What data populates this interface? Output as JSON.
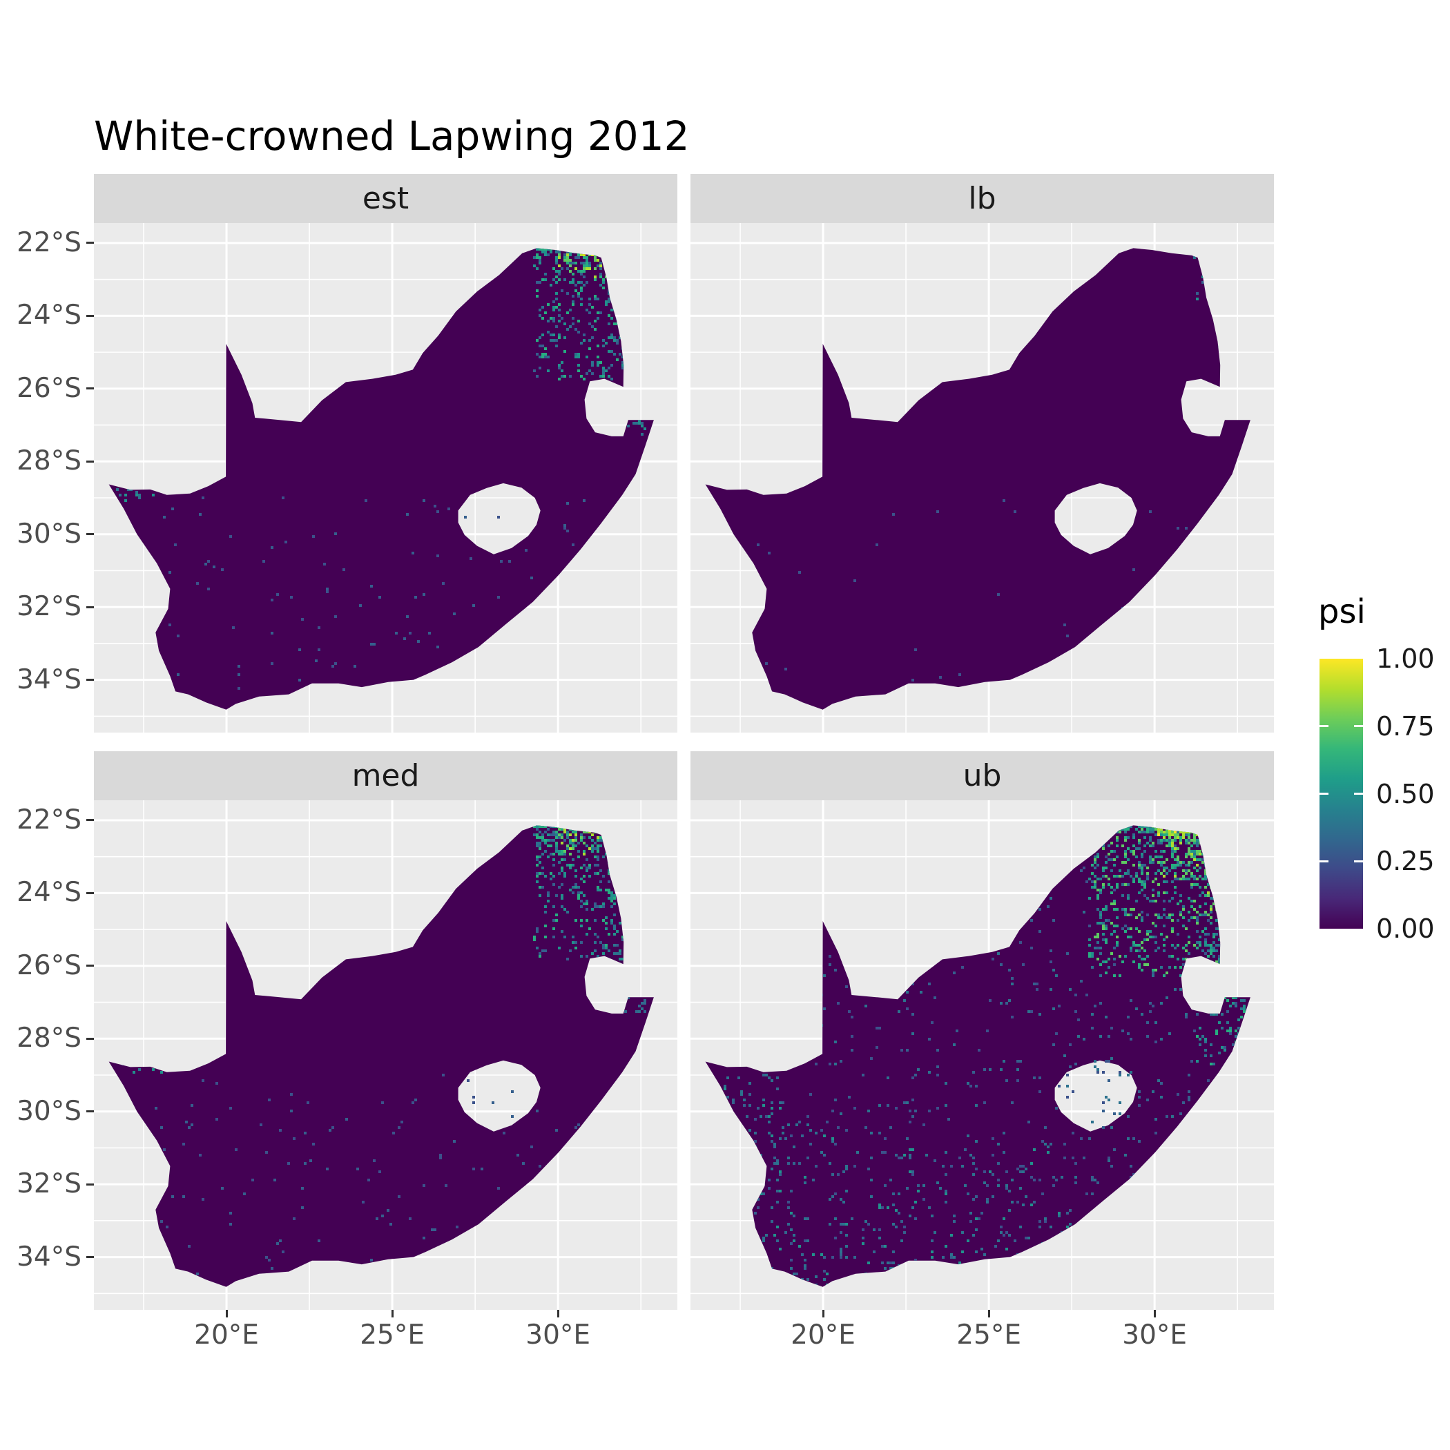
{
  "title": "White-crowned Lapwing 2012",
  "legend": {
    "title": "psi",
    "breaks": [
      "1.00",
      "0.75",
      "0.50",
      "0.25",
      "0.00"
    ],
    "break_values": [
      1.0,
      0.75,
      0.5,
      0.25,
      0.0
    ],
    "interior_tick_values": [
      0.75,
      0.5,
      0.25
    ]
  },
  "axes": {
    "x": {
      "ticks": [
        "20°E",
        "25°E",
        "30°E"
      ],
      "values": [
        20,
        25,
        30
      ],
      "minor": [
        17.5,
        22.5,
        27.5,
        32.5
      ],
      "domain": [
        16.0,
        33.6
      ]
    },
    "y": {
      "ticks": [
        "22°S",
        "24°S",
        "26°S",
        "28°S",
        "30°S",
        "32°S",
        "34°S"
      ],
      "values": [
        22,
        24,
        26,
        28,
        30,
        32,
        34
      ],
      "minor": [
        23,
        25,
        27,
        29,
        31,
        33,
        35
      ],
      "domain": [
        21.45,
        35.45
      ]
    }
  },
  "colors": {
    "panel_bg": "#EBEBEB",
    "strip_bg": "#D9D9D9",
    "strip_text": "#1A1A1A",
    "grid": "#FFFFFF",
    "map_base": "#440154",
    "axis_text": "#4D4D4D",
    "tick": "#333333",
    "title_text": "#000000",
    "viridis": [
      "#440154",
      "#482878",
      "#3E4A89",
      "#31688E",
      "#26828E",
      "#1F9E89",
      "#35B779",
      "#6DCD59",
      "#B4DE2C",
      "#FDE725"
    ]
  },
  "chart_data": {
    "type": "heatmap",
    "subtype": "faceted raster occupancy maps",
    "geography": "South Africa",
    "title": "White-crowned Lapwing 2012",
    "fill_variable": "psi",
    "psi_range": [
      0.0,
      1.0
    ],
    "facet_labels": [
      "est",
      "lb",
      "med",
      "ub"
    ],
    "description": "Four faceted raster maps of South Africa showing modelled occupancy probability (psi) for the White-crowned Lapwing in 2012: point estimate (est), lower bound (lb), median (med) and upper bound (ub). Nearly all grid cells are psi ~ 0 (dark purple). Higher psi values (teal, green, yellow up to ~1.0) are concentrated in the far north-east (Limpopo valley / Kruger lowveld, ~29.5-32.5E, 22-25S). lb is almost uniformly 0 with a few teal cells in the extreme north-east; est and med show a clear north-east hotspot with a yellow streak on the northern border; ub shows the strongest north-east hotspot plus widespread scattered low-to-moderate cells across the rest of the country.",
    "map_outline": [
      [
        16.45,
        28.63
      ],
      [
        17.1,
        28.78
      ],
      [
        17.7,
        28.77
      ],
      [
        18.2,
        28.92
      ],
      [
        18.9,
        28.88
      ],
      [
        19.45,
        28.68
      ],
      [
        19.98,
        28.42
      ],
      [
        19.99,
        24.77
      ],
      [
        20.45,
        25.62
      ],
      [
        20.78,
        26.4
      ],
      [
        20.86,
        26.8
      ],
      [
        21.6,
        26.86
      ],
      [
        22.25,
        26.92
      ],
      [
        22.88,
        26.32
      ],
      [
        23.6,
        25.82
      ],
      [
        24.4,
        25.73
      ],
      [
        25.1,
        25.62
      ],
      [
        25.62,
        25.48
      ],
      [
        25.92,
        25.02
      ],
      [
        26.38,
        24.55
      ],
      [
        26.92,
        23.88
      ],
      [
        27.56,
        23.33
      ],
      [
        28.22,
        22.88
      ],
      [
        28.92,
        22.28
      ],
      [
        29.36,
        22.14
      ],
      [
        29.92,
        22.19
      ],
      [
        30.52,
        22.28
      ],
      [
        31.12,
        22.34
      ],
      [
        31.3,
        22.4
      ],
      [
        31.46,
        22.95
      ],
      [
        31.56,
        23.5
      ],
      [
        31.76,
        24.1
      ],
      [
        31.9,
        24.7
      ],
      [
        31.98,
        25.35
      ],
      [
        31.97,
        25.95
      ],
      [
        31.4,
        25.73
      ],
      [
        30.96,
        25.8
      ],
      [
        30.8,
        26.3
      ],
      [
        30.86,
        26.82
      ],
      [
        31.12,
        27.2
      ],
      [
        31.62,
        27.31
      ],
      [
        31.97,
        27.31
      ],
      [
        32.12,
        26.86
      ],
      [
        32.89,
        26.86
      ],
      [
        32.64,
        27.55
      ],
      [
        32.34,
        28.35
      ],
      [
        31.94,
        28.92
      ],
      [
        31.3,
        29.7
      ],
      [
        30.68,
        30.42
      ],
      [
        30.02,
        31.12
      ],
      [
        29.24,
        31.86
      ],
      [
        28.44,
        32.46
      ],
      [
        27.6,
        33.1
      ],
      [
        26.8,
        33.52
      ],
      [
        26.0,
        33.86
      ],
      [
        25.64,
        34.0
      ],
      [
        24.88,
        34.06
      ],
      [
        24.08,
        34.2
      ],
      [
        23.38,
        34.1
      ],
      [
        22.58,
        34.1
      ],
      [
        21.88,
        34.4
      ],
      [
        20.98,
        34.46
      ],
      [
        20.28,
        34.66
      ],
      [
        19.99,
        34.82
      ],
      [
        19.38,
        34.62
      ],
      [
        18.84,
        34.4
      ],
      [
        18.46,
        34.32
      ],
      [
        18.3,
        33.9
      ],
      [
        17.96,
        33.2
      ],
      [
        17.86,
        32.7
      ],
      [
        18.24,
        32.05
      ],
      [
        18.3,
        31.5
      ],
      [
        17.9,
        30.8
      ],
      [
        17.3,
        30.0
      ],
      [
        16.9,
        29.3
      ]
    ],
    "lesotho_hole": [
      [
        26.99,
        29.35
      ],
      [
        27.35,
        28.92
      ],
      [
        27.85,
        28.73
      ],
      [
        28.35,
        28.6
      ],
      [
        28.9,
        28.72
      ],
      [
        29.3,
        29.0
      ],
      [
        29.47,
        29.35
      ],
      [
        29.35,
        29.74
      ],
      [
        29.1,
        30.05
      ],
      [
        28.6,
        30.38
      ],
      [
        28.06,
        30.55
      ],
      [
        27.56,
        30.32
      ],
      [
        27.18,
        30.02
      ],
      [
        26.99,
        29.68
      ]
    ],
    "facets": [
      {
        "id": "est",
        "label": "est",
        "seed": 7,
        "speckles": [
          {
            "region": [
              29.3,
              22.15,
              32.3,
              25.8
            ],
            "count": 420,
            "colors": [
              "#355f8d",
              "#2c728e",
              "#21918c",
              "#27ad81"
            ],
            "bias": "north"
          },
          {
            "region": [
              30.6,
              22.15,
              31.5,
              22.3
            ],
            "count": 18,
            "colors": [
              "#fde725",
              "#dde318",
              "#addc30"
            ],
            "bias": "none"
          },
          {
            "region": [
              30.0,
              22.2,
              31.8,
              23.0
            ],
            "count": 60,
            "colors": [
              "#5ec962",
              "#27ad81",
              "#addc30"
            ],
            "bias": "north"
          },
          {
            "region": [
              31.5,
              23.0,
              32.6,
              27.3
            ],
            "count": 120,
            "colors": [
              "#31688e",
              "#2c728e",
              "#21918c"
            ],
            "bias": "east"
          },
          {
            "region": [
              16.5,
              28.35,
              18.2,
              29.05
            ],
            "count": 28,
            "colors": [
              "#21918c",
              "#2c728e"
            ],
            "bias": "none"
          },
          {
            "region": [
              17.5,
              29.0,
              31.5,
              34.6
            ],
            "count": 110,
            "colors": [
              "#3b528b",
              "#355f8d"
            ],
            "bias": "none"
          }
        ]
      },
      {
        "id": "lb",
        "label": "lb",
        "seed": 11,
        "speckles": [
          {
            "region": [
              31.1,
              22.2,
              32.35,
              23.6
            ],
            "count": 34,
            "colors": [
              "#2c728e",
              "#21918c",
              "#355f8d"
            ],
            "bias": "north"
          },
          {
            "region": [
              31.7,
              23.6,
              32.45,
              25.2
            ],
            "count": 20,
            "colors": [
              "#355f8d",
              "#31688e"
            ],
            "bias": "east"
          },
          {
            "region": [
              30.9,
              22.18,
              31.4,
              22.35
            ],
            "count": 6,
            "colors": [
              "#27ad81"
            ],
            "bias": "none"
          },
          {
            "region": [
              18.0,
              29.0,
              31.0,
              34.4
            ],
            "count": 30,
            "colors": [
              "#3b528b"
            ],
            "bias": "none"
          }
        ]
      },
      {
        "id": "med",
        "label": "med",
        "seed": 13,
        "speckles": [
          {
            "region": [
              29.3,
              22.15,
              32.3,
              25.8
            ],
            "count": 480,
            "colors": [
              "#355f8d",
              "#2c728e",
              "#21918c",
              "#27ad81"
            ],
            "bias": "north"
          },
          {
            "region": [
              30.6,
              22.15,
              31.5,
              22.3
            ],
            "count": 22,
            "colors": [
              "#fde725",
              "#dde318",
              "#addc30"
            ],
            "bias": "none"
          },
          {
            "region": [
              30.0,
              22.2,
              31.8,
              23.0
            ],
            "count": 70,
            "colors": [
              "#5ec962",
              "#27ad81",
              "#addc30"
            ],
            "bias": "north"
          },
          {
            "region": [
              31.5,
              23.0,
              32.6,
              27.3
            ],
            "count": 140,
            "colors": [
              "#31688e",
              "#2c728e",
              "#21918c"
            ],
            "bias": "east"
          },
          {
            "region": [
              16.5,
              28.35,
              18.2,
              29.05
            ],
            "count": 28,
            "colors": [
              "#21918c",
              "#2c728e"
            ],
            "bias": "none"
          },
          {
            "region": [
              17.5,
              29.0,
              31.5,
              34.6
            ],
            "count": 130,
            "colors": [
              "#3b528b",
              "#355f8d"
            ],
            "bias": "none"
          }
        ]
      },
      {
        "id": "ub",
        "label": "ub",
        "seed": 17,
        "speckles": [
          {
            "region": [
              28.0,
              22.15,
              32.4,
              26.3
            ],
            "count": 900,
            "colors": [
              "#2c728e",
              "#21918c",
              "#27ad81",
              "#5ec962"
            ],
            "bias": "north"
          },
          {
            "region": [
              30.0,
              22.15,
              32.1,
              22.45
            ],
            "count": 60,
            "colors": [
              "#fde725",
              "#addc30",
              "#5ec962"
            ],
            "bias": "none"
          },
          {
            "region": [
              30.2,
              22.3,
              32.0,
              23.6
            ],
            "count": 130,
            "colors": [
              "#5ec962",
              "#27ad81",
              "#addc30"
            ],
            "bias": "north"
          },
          {
            "region": [
              31.3,
              23.0,
              32.7,
              28.8
            ],
            "count": 210,
            "colors": [
              "#2c728e",
              "#21918c",
              "#27ad81"
            ],
            "bias": "east"
          },
          {
            "region": [
              31.6,
              24.0,
              32.1,
              24.5
            ],
            "count": 10,
            "colors": [
              "#addc30",
              "#5ec962"
            ],
            "bias": "none"
          },
          {
            "region": [
              16.5,
              28.3,
              18.8,
              33.8
            ],
            "count": 120,
            "colors": [
              "#21918c",
              "#2c728e",
              "#31688e"
            ],
            "bias": "none"
          },
          {
            "region": [
              18.4,
              30.5,
              27.5,
              34.8
            ],
            "count": 240,
            "colors": [
              "#31688e",
              "#2c728e",
              "#21918c"
            ],
            "bias": "south"
          },
          {
            "region": [
              16.8,
              22.5,
              32.5,
              34.5
            ],
            "count": 800,
            "colors": [
              "#3b528b",
              "#355f8d",
              "#2c728e"
            ],
            "bias": "none"
          }
        ]
      }
    ]
  }
}
